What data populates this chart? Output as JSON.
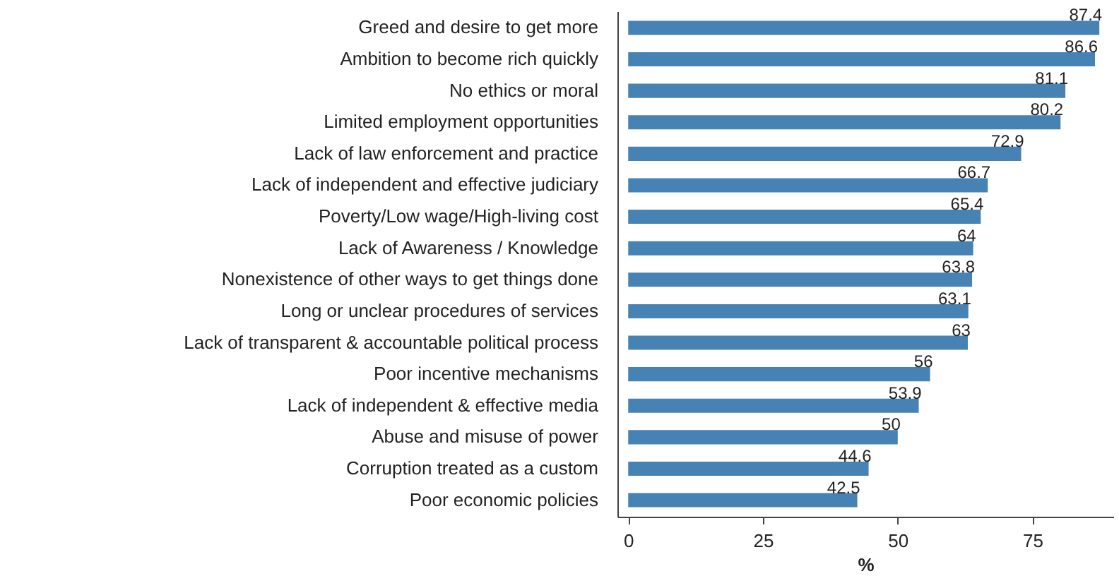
{
  "chart_data": {
    "type": "bar",
    "orientation": "horizontal",
    "xlabel": "%",
    "categories": [
      "Greed and desire to get more",
      "Ambition to become rich quickly",
      "No ethics or moral",
      "Limited employment opportunities",
      "Lack of law enforcement and practice",
      "Lack of independent and effective judiciary",
      "Poverty/Low wage/High-living cost",
      "Lack of Awareness / Knowledge",
      "Nonexistence of other ways to get things done",
      "Long or unclear procedures of services",
      "Lack of transparent & accountable political process",
      "Poor incentive mechanisms",
      "Lack of independent & effective media",
      "Abuse and misuse of power",
      "Corruption treated as a custom",
      "Poor economic policies"
    ],
    "values": [
      87.4,
      86.6,
      81.1,
      80.2,
      72.9,
      66.7,
      65.4,
      64,
      63.8,
      63.1,
      63,
      56,
      53.9,
      50,
      44.6,
      42.5
    ],
    "color": "#4682b4",
    "xlim": [
      -2,
      90
    ],
    "xticks": [
      0,
      25,
      50,
      75
    ],
    "grid": false,
    "data_labels": true
  }
}
